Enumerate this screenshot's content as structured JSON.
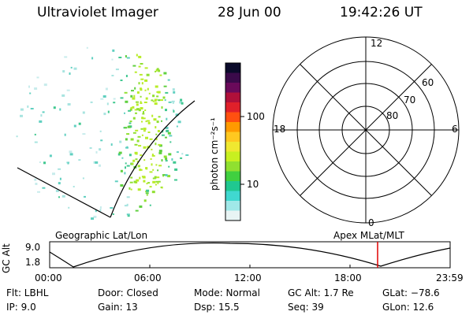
{
  "header": {
    "title": "Ultraviolet Imager",
    "date": "28 Jun 00",
    "time": "19:42:26 UT"
  },
  "colorbar": {
    "label": "photon cm⁻²s⁻¹",
    "ticks": [
      "100",
      "10"
    ],
    "colors": [
      "#0a0a2a",
      "#3a0a4a",
      "#6a0a5a",
      "#b0103a",
      "#e0202a",
      "#ff5010",
      "#ff9a00",
      "#ffc820",
      "#f0e830",
      "#c8f020",
      "#90e030",
      "#40d040",
      "#20c890",
      "#40d8d0",
      "#a0e8e8",
      "#e8f4f4"
    ]
  },
  "polar_plot": {
    "mlt_labels": [
      "12",
      "18",
      "6",
      "0"
    ],
    "lat_labels": [
      "60",
      "70",
      "80"
    ]
  },
  "plot_labels": {
    "left_projection": "Geographic Lat/Lon",
    "right_projection": "Apex MLat/MLT"
  },
  "altitude_panel": {
    "axis_label": "GC Alt",
    "y_ticks": [
      "9.0",
      "1.8"
    ],
    "x_ticks": [
      "00:00",
      "06:00",
      "12:00",
      "18:00",
      "23:59"
    ],
    "current_marker_color": "#e00000"
  },
  "info": {
    "flt": "Flt: LBHL",
    "ip": "IP:  9.0",
    "door": "Door: Closed",
    "gain": "Gain: 13",
    "mode": "Mode: Normal",
    "dsp": "Dsp:    15.5",
    "gcalt": "GC Alt: 1.7 Re",
    "seq": "Seq: 39",
    "glat": "GLat:  −78.6",
    "glon": "GLon:   12.6"
  }
}
